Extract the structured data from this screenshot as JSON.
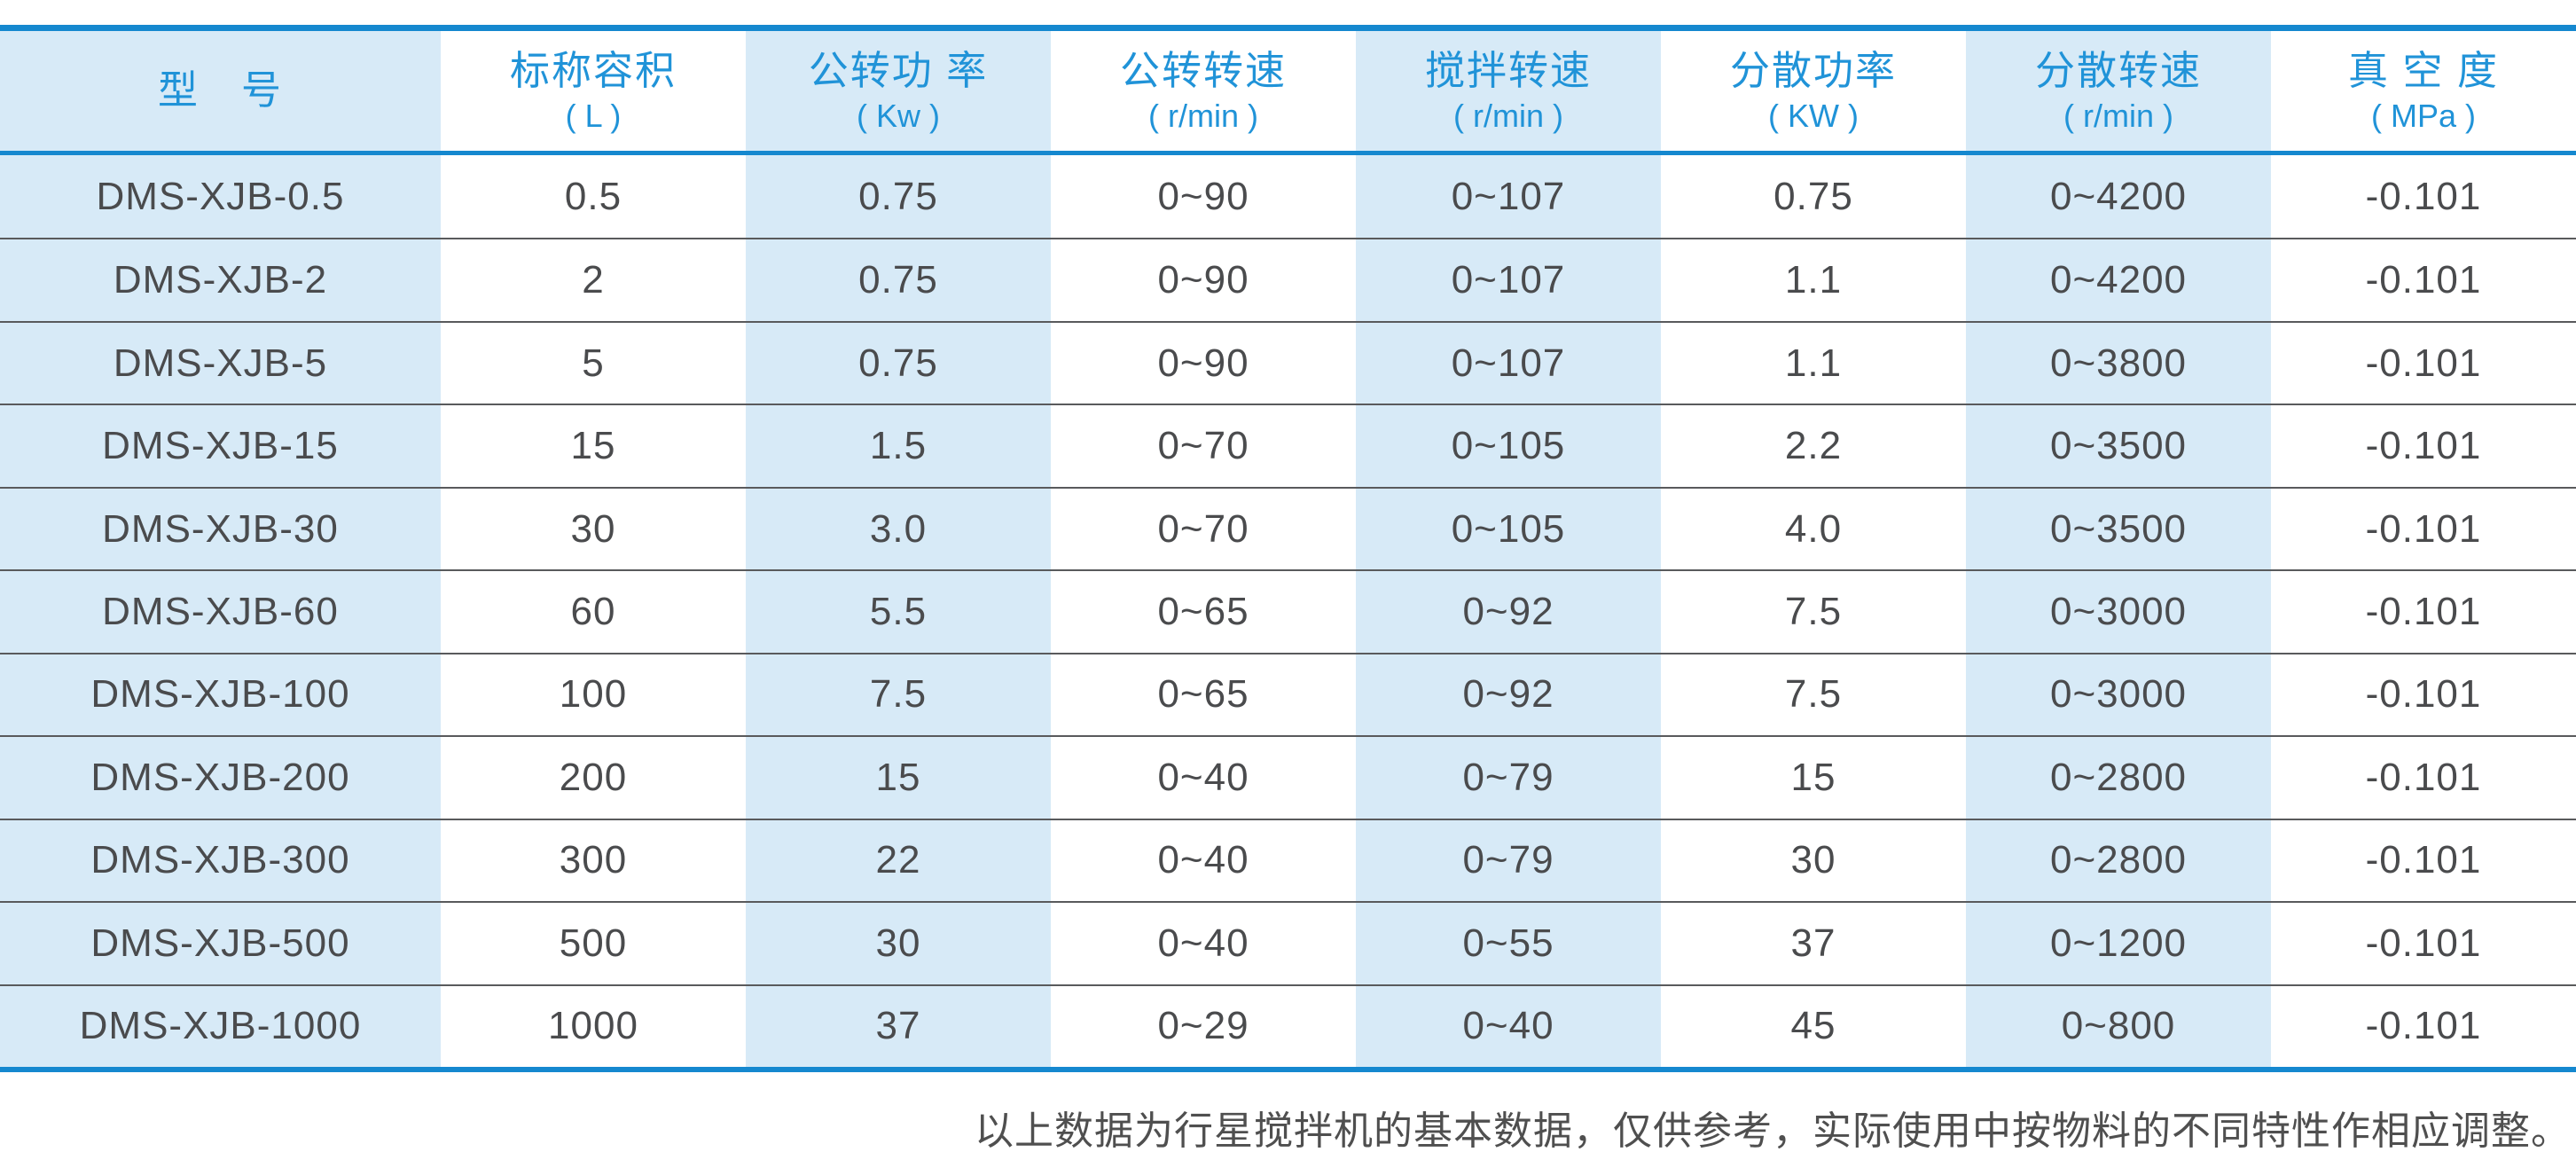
{
  "table": {
    "columns": [
      {
        "title": "型　号",
        "unit": ""
      },
      {
        "title": "标称容积",
        "unit": "( L )"
      },
      {
        "title": "公转功 率",
        "unit": "( Kw )"
      },
      {
        "title": "公转转速",
        "unit": "( r/min )"
      },
      {
        "title": "搅拌转速",
        "unit": "( r/min )"
      },
      {
        "title": "分散功率",
        "unit": "( KW )"
      },
      {
        "title": "分散转速",
        "unit": "( r/min )"
      },
      {
        "title": "真 空 度",
        "unit": "( MPa )"
      }
    ],
    "rows": [
      [
        "DMS-XJB-0.5",
        "0.5",
        "0.75",
        "0~90",
        "0~107",
        "0.75",
        "0~4200",
        "-0.101"
      ],
      [
        "DMS-XJB-2",
        "2",
        "0.75",
        "0~90",
        "0~107",
        "1.1",
        "0~4200",
        "-0.101"
      ],
      [
        "DMS-XJB-5",
        "5",
        "0.75",
        "0~90",
        "0~107",
        "1.1",
        "0~3800",
        "-0.101"
      ],
      [
        "DMS-XJB-15",
        "15",
        "1.5",
        "0~70",
        "0~105",
        "2.2",
        "0~3500",
        "-0.101"
      ],
      [
        "DMS-XJB-30",
        "30",
        "3.0",
        "0~70",
        "0~105",
        "4.0",
        "0~3500",
        "-0.101"
      ],
      [
        "DMS-XJB-60",
        "60",
        "5.5",
        "0~65",
        "0~92",
        "7.5",
        "0~3000",
        "-0.101"
      ],
      [
        "DMS-XJB-100",
        "100",
        "7.5",
        "0~65",
        "0~92",
        "7.5",
        "0~3000",
        "-0.101"
      ],
      [
        "DMS-XJB-200",
        "200",
        "15",
        "0~40",
        "0~79",
        "15",
        "0~2800",
        "-0.101"
      ],
      [
        "DMS-XJB-300",
        "300",
        "22",
        "0~40",
        "0~79",
        "30",
        "0~2800",
        "-0.101"
      ],
      [
        "DMS-XJB-500",
        "500",
        "30",
        "0~40",
        "0~55",
        "37",
        "0~1200",
        "-0.101"
      ],
      [
        "DMS-XJB-1000",
        "1000",
        "37",
        "0~29",
        "0~40",
        "45",
        "0~800",
        "-0.101"
      ]
    ]
  },
  "footnote": "以上数据为行星搅拌机的基本数据，仅供参考，实际使用中按物料的不同特性作相应调整。",
  "colors": {
    "accent_blue": "#1588cf",
    "header_text_blue": "#2093d8",
    "column_band_blue": "#d7eaf7",
    "body_text_gray": "#4a4b4d",
    "row_separator_gray": "#595a5c"
  }
}
